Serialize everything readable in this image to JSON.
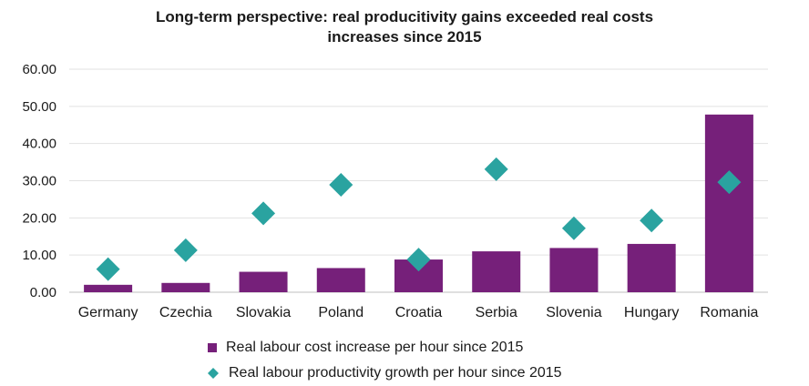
{
  "chart_data": {
    "type": "bar",
    "title_lines": [
      "Long-term perspective: real producitivity gains exceeded real costs",
      "increases since 2015"
    ],
    "categories": [
      "Germany",
      "Czechia",
      "Slovakia",
      "Poland",
      "Croatia",
      "Serbia",
      "Slovenia",
      "Hungary",
      "Romania"
    ],
    "series": [
      {
        "name": "Real labour cost increase per hour since 2015",
        "type": "bar",
        "color": "#76207a",
        "values": [
          2.0,
          2.5,
          5.5,
          6.5,
          8.8,
          11.0,
          11.9,
          13.0,
          47.8
        ]
      },
      {
        "name": "Real labour productivity growth per hour since 2015",
        "type": "scatter",
        "marker": "diamond",
        "color": "#2aa3a0",
        "values": [
          6.2,
          11.3,
          21.2,
          28.9,
          8.8,
          33.1,
          17.2,
          19.3,
          29.6
        ]
      }
    ],
    "ylim": [
      0,
      60
    ],
    "yticks": [
      "0.00",
      "10.00",
      "20.00",
      "30.00",
      "40.00",
      "50.00",
      "60.00"
    ],
    "grid": true,
    "legend_position": "bottom"
  }
}
